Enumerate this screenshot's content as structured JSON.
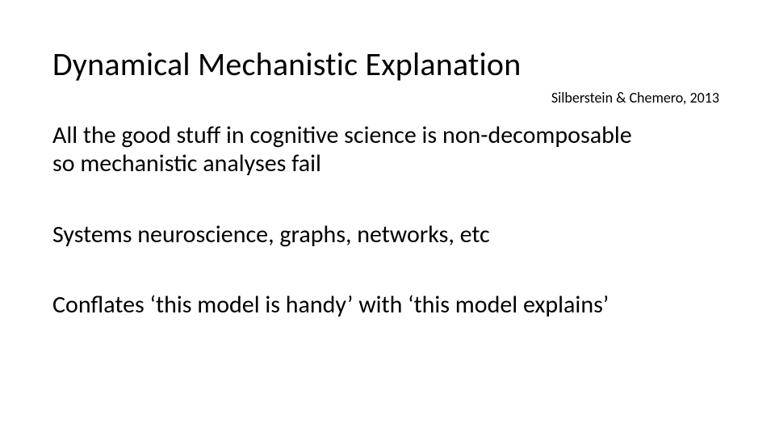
{
  "slide": {
    "title": "Dynamical Mechanistic Explanation",
    "citation": "Silberstein & Chemero, 2013",
    "paragraphs": [
      "All the good stuff in cognitive science is non-decomposable so mechanistic analyses fail",
      "Systems neuroscience, graphs, networks, etc",
      "Conflates ‘this model is handy’ with ‘this model explains’"
    ],
    "style": {
      "background_color": "#ffffff",
      "text_color": "#000000",
      "title_fontsize": 40,
      "citation_fontsize": 18,
      "body_fontsize": 30,
      "font_family": "Calibri"
    }
  }
}
